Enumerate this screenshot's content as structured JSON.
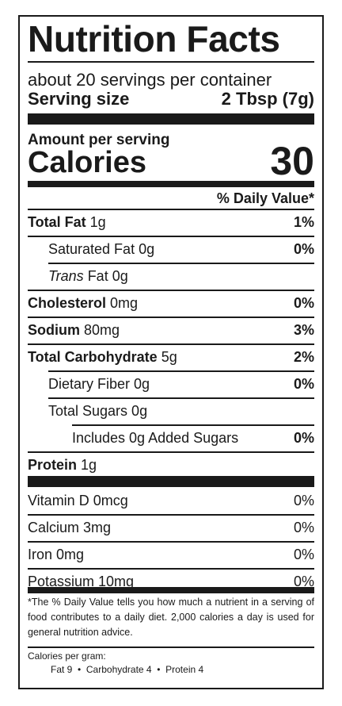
{
  "title": "Nutrition Facts",
  "servings_per_container": "about 20 servings per container",
  "serving_size_label": "Serving size",
  "serving_size_value": "2 Tbsp (7g)",
  "amount_per_serving": "Amount per serving",
  "calories_label": "Calories",
  "calories_value": "30",
  "dv_header": "% Daily Value*",
  "nutrients": [
    {
      "name": "Total Fat",
      "amount": " 1g",
      "dv": "1%"
    },
    {
      "name": "Saturated Fat 0g",
      "dv": "0%"
    },
    {
      "name_italic": "Trans",
      "name": " Fat 0g",
      "dv": ""
    },
    {
      "name": "Cholesterol",
      "amount": " 0mg",
      "dv": "0%"
    },
    {
      "name": "Sodium",
      "amount": " 80mg",
      "dv": "3%"
    },
    {
      "name": "Total Carbohydrate",
      "amount": " 5g",
      "dv": "2%"
    },
    {
      "name": "Dietary Fiber 0g",
      "dv": "0%"
    },
    {
      "name": "Total Sugars 0g",
      "dv": ""
    },
    {
      "name": "Includes 0g Added Sugars",
      "dv": "0%"
    },
    {
      "name": "Protein",
      "amount": " 1g",
      "dv": ""
    }
  ],
  "vitamins": [
    {
      "name": "Vitamin D 0mcg",
      "dv": "0%"
    },
    {
      "name": "Calcium 3mg",
      "dv": "0%"
    },
    {
      "name": "Iron 0mg",
      "dv": "0%"
    },
    {
      "name": "Potassium 10mg",
      "dv": "0%"
    }
  ],
  "footnote": "*The % Daily Value tells you how much a nutrient in a serving of food contributes to a daily diet. 2,000 calories a day is used for general nutrition advice.",
  "calories_per_gram_label": "Calories per gram:",
  "calories_per_gram_values": "Fat 9  •  Carbohydrate 4  •  Protein 4"
}
